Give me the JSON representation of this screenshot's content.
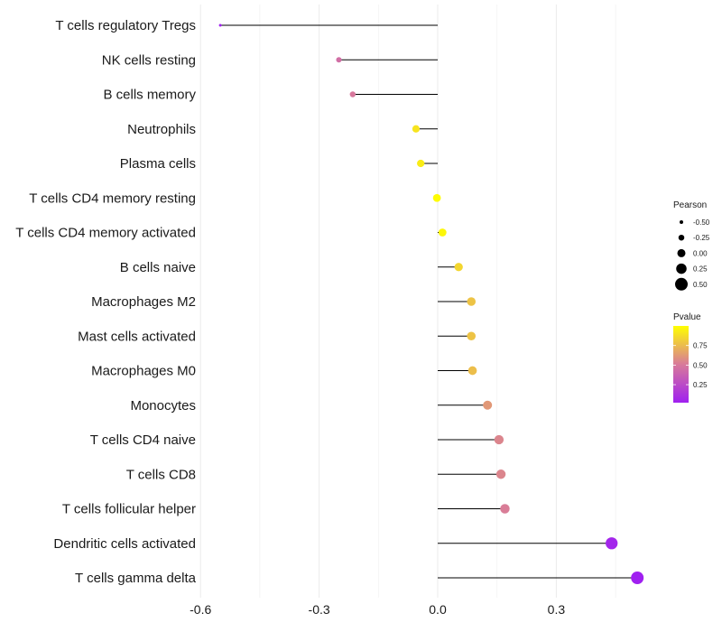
{
  "chart_data": {
    "type": "lollipop",
    "title": "",
    "xlabel": "",
    "ylabel": "",
    "xlim": [
      -0.6,
      0.58
    ],
    "x_ticks": [
      -0.6,
      -0.3,
      0.0,
      0.3
    ],
    "x_tick_labels": [
      "-0.6",
      "-0.3",
      "0.0",
      "0.3"
    ],
    "grid": true,
    "categories": [
      "T cells regulatory  Tregs",
      "NK cells resting",
      "B cells memory",
      "Neutrophils",
      "Plasma cells",
      "T cells CD4 memory resting",
      "T cells CD4 memory activated",
      "B cells naive",
      "Macrophages M2",
      "Mast cells activated",
      "Macrophages M0",
      "Monocytes",
      "T cells CD4 naive",
      "T cells CD8",
      "T cells follicular helper",
      "Dendritic cells activated",
      "T cells gamma delta"
    ],
    "values": [
      -0.55,
      -0.25,
      -0.215,
      -0.055,
      -0.043,
      -0.002,
      0.012,
      0.053,
      0.085,
      0.085,
      0.088,
      0.126,
      0.155,
      0.16,
      0.17,
      0.44,
      0.505
    ],
    "pvalues": [
      0.02,
      0.45,
      0.5,
      0.9,
      0.93,
      0.99,
      0.97,
      0.85,
      0.78,
      0.78,
      0.76,
      0.62,
      0.55,
      0.55,
      0.52,
      0.05,
      0.02
    ],
    "legend": {
      "pearson": {
        "title": "Pearson",
        "breaks": [
          -0.5,
          -0.25,
          0.0,
          0.25,
          0.5
        ],
        "labels": [
          "-0.50",
          "-0.25",
          "0.00",
          "0.25",
          "0.50"
        ]
      },
      "pvalue": {
        "title": "Pvalue",
        "breaks": [
          0.75,
          0.5,
          0.25
        ],
        "labels": [
          "0.75",
          "0.50",
          "0.25"
        ],
        "range": [
          0.02,
          1.0
        ],
        "low_color": "#a020f0",
        "mid_color": "#d87a9a",
        "high_color": "#ffff00"
      },
      "placement": "right"
    }
  }
}
